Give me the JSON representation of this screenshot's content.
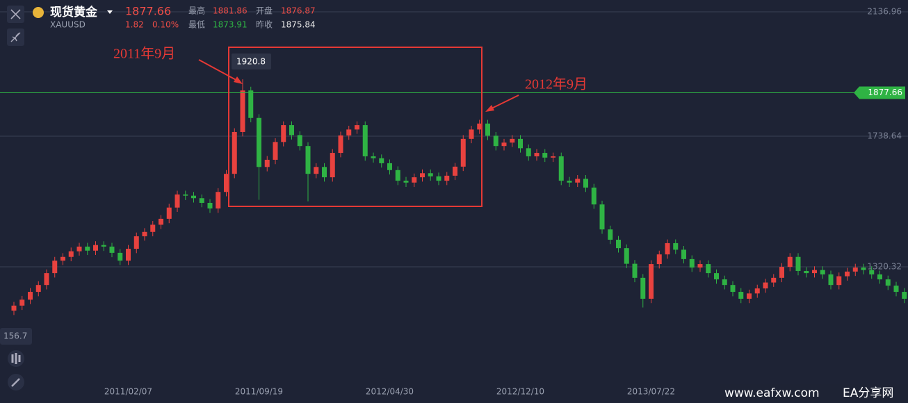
{
  "header": {
    "name": "现货黄金",
    "symbol": "XAUUSD",
    "change": "1.82",
    "change_pct": "0.10%",
    "high_label": "最高",
    "high": "1881.86",
    "open_label": "开盘",
    "open": "1876.87",
    "low_label": "最低",
    "low": "1873.91",
    "prev_close_label": "昨收",
    "prev_close": "1875.84"
  },
  "chart_data": {
    "type": "candlestick",
    "categories": [
      null,
      null,
      null,
      null,
      null,
      null,
      null,
      null,
      null,
      null,
      null,
      null,
      null,
      null,
      "2011/02/07",
      null,
      null,
      null,
      null,
      null,
      null,
      null,
      null,
      null,
      null,
      null,
      null,
      null,
      null,
      null,
      "2011/09/19",
      null,
      null,
      null,
      null,
      null,
      null,
      null,
      null,
      null,
      null,
      null,
      null,
      null,
      null,
      null,
      "2012/04/30",
      null,
      null,
      null,
      null,
      null,
      null,
      null,
      null,
      null,
      null,
      null,
      null,
      null,
      null,
      null,
      "2012/12/10",
      null,
      null,
      null,
      null,
      null,
      null,
      null,
      null,
      null,
      null,
      null,
      null,
      null,
      null,
      null,
      "2013/07/22",
      null,
      null,
      null,
      null,
      null,
      null,
      null,
      null,
      null,
      null,
      null,
      null,
      null,
      null,
      null,
      null,
      null,
      null,
      null,
      null,
      null,
      null,
      null,
      null,
      null,
      null,
      null,
      null,
      null,
      null,
      null
    ],
    "series": [
      {
        "up_color": "#e8423f",
        "down_color": "#2fb344",
        "open": [
          1180,
          1196,
          1215,
          1240,
          1262,
          1300,
          1340,
          1352,
          1370,
          1385,
          1372,
          1390,
          1385,
          1365,
          1340,
          1378,
          1418,
          1432,
          1455,
          1474,
          1510,
          1552,
          1548,
          1540,
          1525,
          1507,
          1560,
          1618,
          1752,
          1885,
          1797,
          1640,
          1663,
          1720,
          1774,
          1742,
          1707,
          1618,
          1640,
          1607,
          1685,
          1741,
          1760,
          1774,
          1674,
          1668,
          1652,
          1630,
          1596,
          1590,
          1607,
          1620,
          1610,
          1596,
          1612,
          1641,
          1730,
          1760,
          1779,
          1740,
          1707,
          1718,
          1730,
          1700,
          1674,
          1685,
          1670,
          1674,
          1596,
          1590,
          1602,
          1574,
          1520,
          1440,
          1407,
          1380,
          1330,
          1285,
          1218,
          1329,
          1360,
          1396,
          1375,
          1345,
          1318,
          1329,
          1300,
          1280,
          1262,
          1240,
          1218,
          1235,
          1251,
          1270,
          1285,
          1320,
          1352,
          1307,
          1300,
          1310,
          1296,
          1262,
          1290,
          1305,
          1318,
          1310,
          1296,
          1280,
          1260,
          1240
        ],
        "high": [
          1208,
          1227,
          1252,
          1274,
          1312,
          1352,
          1364,
          1382,
          1397,
          1397,
          1402,
          1402,
          1397,
          1377,
          1390,
          1430,
          1444,
          1467,
          1486,
          1522,
          1564,
          1564,
          1560,
          1552,
          1537,
          1572,
          1630,
          1764,
          1920.8,
          1897,
          1809,
          1675,
          1732,
          1786,
          1786,
          1754,
          1719,
          1652,
          1652,
          1697,
          1753,
          1772,
          1786,
          1786,
          1686,
          1680,
          1664,
          1642,
          1608,
          1619,
          1632,
          1632,
          1622,
          1624,
          1653,
          1742,
          1772,
          1791,
          1791,
          1752,
          1730,
          1742,
          1742,
          1712,
          1697,
          1697,
          1686,
          1686,
          1608,
          1614,
          1614,
          1586,
          1532,
          1452,
          1419,
          1392,
          1342,
          1297,
          1341,
          1372,
          1408,
          1408,
          1387,
          1357,
          1341,
          1341,
          1312,
          1292,
          1274,
          1252,
          1247,
          1263,
          1282,
          1297,
          1332,
          1364,
          1364,
          1319,
          1322,
          1322,
          1308,
          1302,
          1317,
          1330,
          1330,
          1322,
          1308,
          1292,
          1272,
          1252
        ],
        "low": [
          1166,
          1182,
          1201,
          1226,
          1248,
          1286,
          1326,
          1338,
          1356,
          1358,
          1358,
          1371,
          1351,
          1326,
          1326,
          1364,
          1404,
          1418,
          1441,
          1460,
          1496,
          1534,
          1526,
          1511,
          1493,
          1493,
          1546,
          1604,
          1738,
          1783,
          1535,
          1626,
          1649,
          1706,
          1728,
          1693,
          1530,
          1604,
          1593,
          1593,
          1671,
          1727,
          1746,
          1660,
          1654,
          1638,
          1616,
          1582,
          1576,
          1576,
          1593,
          1596,
          1582,
          1582,
          1598,
          1627,
          1716,
          1746,
          1726,
          1693,
          1693,
          1704,
          1686,
          1660,
          1660,
          1656,
          1656,
          1582,
          1576,
          1576,
          1560,
          1506,
          1426,
          1393,
          1366,
          1316,
          1271,
          1190,
          1204,
          1315,
          1346,
          1361,
          1331,
          1304,
          1304,
          1286,
          1266,
          1248,
          1226,
          1204,
          1204,
          1221,
          1237,
          1256,
          1271,
          1306,
          1293,
          1286,
          1286,
          1282,
          1248,
          1248,
          1276,
          1291,
          1296,
          1282,
          1266,
          1246,
          1226,
          1204
        ],
        "close": [
          1196,
          1215,
          1240,
          1262,
          1300,
          1340,
          1352,
          1370,
          1385,
          1372,
          1390,
          1385,
          1365,
          1340,
          1378,
          1418,
          1432,
          1455,
          1474,
          1510,
          1552,
          1548,
          1540,
          1525,
          1507,
          1560,
          1618,
          1752,
          1885,
          1797,
          1640,
          1663,
          1720,
          1774,
          1742,
          1707,
          1618,
          1640,
          1607,
          1685,
          1741,
          1760,
          1774,
          1674,
          1668,
          1652,
          1630,
          1596,
          1590,
          1607,
          1620,
          1610,
          1596,
          1612,
          1641,
          1730,
          1760,
          1779,
          1740,
          1707,
          1718,
          1730,
          1700,
          1674,
          1685,
          1670,
          1674,
          1596,
          1590,
          1602,
          1574,
          1520,
          1440,
          1407,
          1380,
          1330,
          1285,
          1218,
          1329,
          1360,
          1396,
          1375,
          1345,
          1318,
          1329,
          1300,
          1280,
          1262,
          1240,
          1218,
          1235,
          1251,
          1270,
          1285,
          1320,
          1352,
          1307,
          1300,
          1310,
          1296,
          1262,
          1290,
          1305,
          1318,
          1310,
          1296,
          1280,
          1260,
          1240,
          1218
        ]
      }
    ],
    "ylim": [
      962,
      2174.7
    ],
    "yticks": [
      2136.96,
      1738.64,
      1320.32
    ],
    "grid": true,
    "current_price": 1877.66,
    "current_color": "#2fb344",
    "annotations": [
      "2011年9月",
      "2012年9月"
    ],
    "min_label": "156.7"
  },
  "watermark": {
    "site": "www.eafxw.com",
    "name": "EA分享网"
  }
}
